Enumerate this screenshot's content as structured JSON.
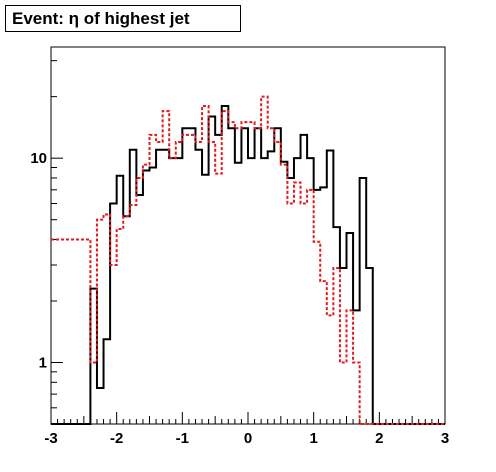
{
  "chart_data": {
    "type": "step-histogram",
    "title": "Event: η of highest jet",
    "xlabel": "",
    "ylabel": "",
    "xlim": [
      -3,
      3
    ],
    "ylim": [
      0.5,
      35
    ],
    "log_y": true,
    "grid": false,
    "x_ticks": [
      -3,
      -2,
      -1,
      0,
      1,
      2,
      3
    ],
    "y_ticks": [
      1,
      10
    ],
    "bin_edges": [
      -2.5,
      -2.4,
      -2.3,
      -2.2,
      -2.1,
      -2.0,
      -1.9,
      -1.8,
      -1.7,
      -1.6,
      -1.5,
      -1.4,
      -1.3,
      -1.2,
      -1.1,
      -1.0,
      -0.9,
      -0.8,
      -0.7,
      -0.6,
      -0.5,
      -0.4,
      -0.3,
      -0.2,
      -0.1,
      0.0,
      0.1,
      0.2,
      0.3,
      0.4,
      0.5,
      0.6,
      0.7,
      0.8,
      0.9,
      1.0,
      1.1,
      1.2,
      1.3,
      1.4,
      1.5,
      1.6,
      1.7,
      1.8,
      1.9,
      2.0,
      2.1,
      2.2,
      2.3,
      2.4,
      2.5
    ],
    "series": [
      {
        "style": "solid",
        "color": "#000000",
        "values": [
          0.5,
          2.3,
          0.75,
          1.3,
          6.0,
          8.2,
          5.2,
          11.0,
          6.6,
          8.7,
          9.0,
          11.0,
          11.0,
          10.0,
          10.0,
          14.0,
          14.0,
          11.0,
          8.3,
          16.0,
          13.0,
          18.0,
          14.0,
          9.5,
          14.0,
          10.0,
          14.0,
          10.0,
          10.8,
          14.0,
          9.6,
          8.0,
          10.0,
          13.0,
          10.0,
          7.0,
          7.2,
          10.9,
          4.6,
          2.9,
          4.3,
          1.8,
          8.0,
          2.9,
          0.5,
          0.5,
          0.5,
          0.5,
          0.5,
          0.5
        ]
      },
      {
        "style": "dashed",
        "color": "#e41a1c",
        "values": [
          4.0,
          1.0,
          5.0,
          5.3,
          3.0,
          4.5,
          5.2,
          5.9,
          8.0,
          9.3,
          13.0,
          12.0,
          17.0,
          10.0,
          12.0,
          13.0,
          13.0,
          12.0,
          18.0,
          12.0,
          8.4,
          17.0,
          15.0,
          14.0,
          15.0,
          15.0,
          14.0,
          20.0,
          14.0,
          12.0,
          9.3,
          6.0,
          7.6,
          6.0,
          7.0,
          3.9,
          2.5,
          1.7,
          2.9,
          1.0,
          1.8,
          1.0,
          0.5,
          0.5,
          0.5,
          0.5,
          0.5,
          0.5,
          0.5,
          0.5
        ]
      }
    ]
  }
}
